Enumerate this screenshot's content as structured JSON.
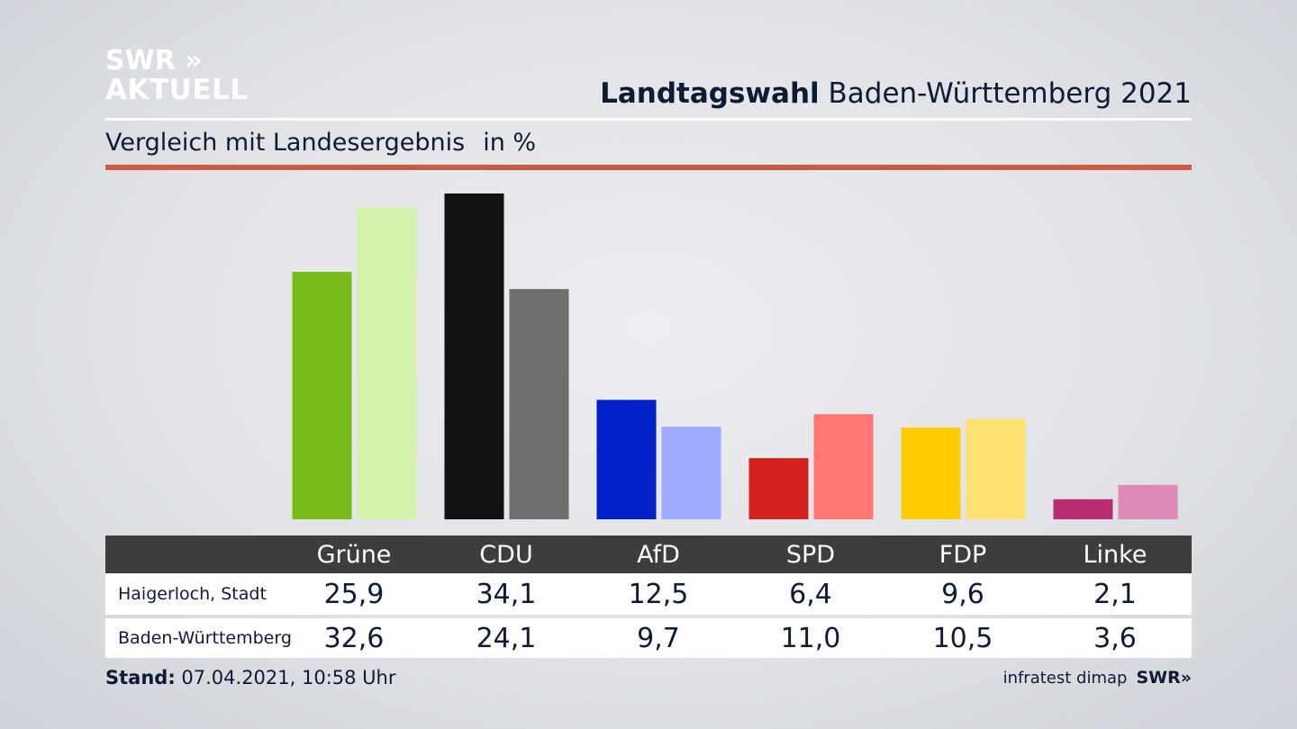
{
  "logo": {
    "line1": "SWR »",
    "line2": "AKTUELL"
  },
  "header": {
    "title_bold": "Landtagswahl",
    "title_rest": " Baden-Württemberg 2021"
  },
  "subtitle": {
    "text": "Vergleich mit Landesergebnis",
    "unit": "in %"
  },
  "table": {
    "columns": [
      "Grüne",
      "CDU",
      "AfD",
      "SPD",
      "FDP",
      "Linke"
    ],
    "rows": [
      {
        "label": "Haigerloch, Stadt",
        "values": [
          "25,9",
          "34,1",
          "12,5",
          "6,4",
          "9,6",
          "2,1"
        ]
      },
      {
        "label": "Baden-Württemberg",
        "values": [
          "32,6",
          "24,1",
          "9,7",
          "11,0",
          "10,5",
          "3,6"
        ]
      }
    ]
  },
  "footer": {
    "stand_label": "Stand:",
    "stand_value": " 07.04.2021, 10:58 Uhr"
  },
  "source": {
    "text": "infratest dimap",
    "brand": "SWR»"
  },
  "chart_data": {
    "type": "bar",
    "categories": [
      "Grüne",
      "CDU",
      "AfD",
      "SPD",
      "FDP",
      "Linke"
    ],
    "series": [
      {
        "name": "Haigerloch, Stadt",
        "values": [
          25.9,
          34.1,
          12.5,
          6.4,
          9.6,
          2.1
        ],
        "colors": [
          "#78bc1b",
          "#121212",
          "#0020c8",
          "#d3201f",
          "#ffcc00",
          "#bb2d72"
        ]
      },
      {
        "name": "Baden-Württemberg",
        "values": [
          32.6,
          24.1,
          9.7,
          11.0,
          10.5,
          3.6
        ],
        "colors": [
          "#d4f3aa",
          "#706f6d",
          "#9eaaff",
          "#ff7772",
          "#ffe272",
          "#dd8ab6"
        ]
      }
    ],
    "title": "Landtagswahl Baden-Württemberg 2021",
    "subtitle": "Vergleich mit Landesergebnis",
    "ylabel": "in %",
    "ylim": [
      0,
      34.1
    ],
    "grid": false
  }
}
